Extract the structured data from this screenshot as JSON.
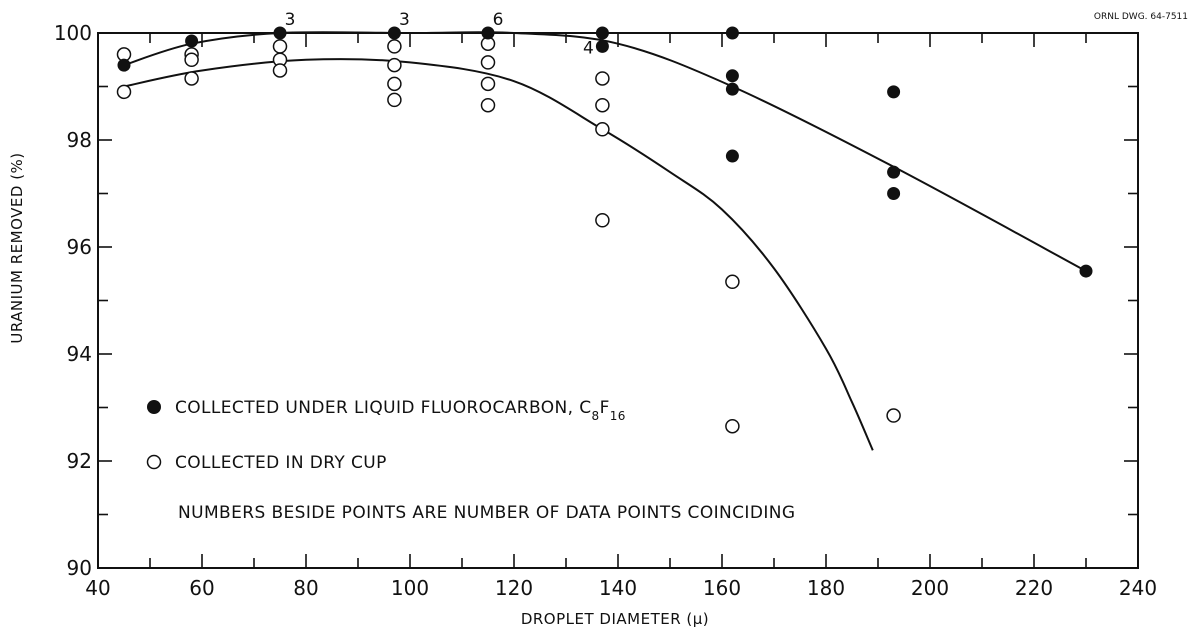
{
  "drawing_id": "ORNL DWG. 64-7511",
  "chart_data": {
    "type": "scatter",
    "xlabel": "DROPLET DIAMETER (μ)",
    "ylabel": "URANIUM REMOVED (%)",
    "xlim": [
      40,
      240
    ],
    "ylim": [
      90,
      100
    ],
    "x_ticks": [
      40,
      60,
      80,
      100,
      120,
      140,
      160,
      180,
      200,
      220,
      240
    ],
    "y_ticks": [
      90,
      92,
      94,
      96,
      98,
      100
    ],
    "x_tick_labels": [
      "40",
      "60",
      "80",
      "100",
      "120",
      "140",
      "160",
      "180",
      "200",
      "220",
      "240"
    ],
    "y_tick_labels": [
      "90",
      "92",
      "94",
      "96",
      "98",
      "100"
    ],
    "grid": false,
    "legend_position": "bottom-left",
    "series": [
      {
        "name": "COLLECTED UNDER LIQUID FLUOROCARBON, C8F16",
        "legend_main": "COLLECTED UNDER LIQUID FLUOROCARBON, C",
        "legend_sub1": "8",
        "legend_mid": "F",
        "legend_sub2": "16",
        "marker": "filled-circle",
        "points": [
          [
            45,
            99.4
          ],
          [
            58,
            99.85
          ],
          [
            75,
            100.0
          ],
          [
            97,
            100.0
          ],
          [
            115,
            100.0
          ],
          [
            137,
            100.0
          ],
          [
            137,
            99.75
          ],
          [
            162,
            100.0
          ],
          [
            162,
            99.2
          ],
          [
            162,
            98.95
          ],
          [
            162,
            97.7
          ],
          [
            193,
            98.9
          ],
          [
            193,
            97.4
          ],
          [
            193,
            97.0
          ],
          [
            230,
            95.55
          ]
        ],
        "curve": [
          [
            45,
            99.4
          ],
          [
            58,
            99.8
          ],
          [
            75,
            100.0
          ],
          [
            100,
            100.0
          ],
          [
            120,
            100.0
          ],
          [
            140,
            99.8
          ],
          [
            162,
            99.0
          ],
          [
            193,
            97.5
          ],
          [
            230,
            95.55
          ]
        ]
      },
      {
        "name": "COLLECTED IN DRY CUP",
        "marker": "open-circle",
        "points": [
          [
            45,
            99.6
          ],
          [
            45,
            98.9
          ],
          [
            58,
            99.6
          ],
          [
            58,
            99.5
          ],
          [
            58,
            99.15
          ],
          [
            75,
            99.75
          ],
          [
            75,
            99.5
          ],
          [
            75,
            99.3
          ],
          [
            97,
            99.75
          ],
          [
            97,
            99.4
          ],
          [
            97,
            99.05
          ],
          [
            97,
            98.75
          ],
          [
            115,
            99.8
          ],
          [
            115,
            99.45
          ],
          [
            115,
            99.05
          ],
          [
            115,
            98.65
          ],
          [
            137,
            99.15
          ],
          [
            137,
            98.65
          ],
          [
            137,
            98.2
          ],
          [
            137,
            96.5
          ],
          [
            162,
            95.35
          ],
          [
            162,
            92.65
          ],
          [
            193,
            92.85
          ]
        ],
        "curve": [
          [
            45,
            99.0
          ],
          [
            60,
            99.3
          ],
          [
            80,
            99.5
          ],
          [
            100,
            99.45
          ],
          [
            120,
            99.1
          ],
          [
            137,
            98.2
          ],
          [
            150,
            97.4
          ],
          [
            160,
            96.7
          ],
          [
            170,
            95.6
          ],
          [
            180,
            94.1
          ],
          [
            185,
            93.1
          ],
          [
            189,
            92.2
          ]
        ]
      }
    ],
    "annotations": [
      {
        "text": "3",
        "x": 75,
        "y": 100.0
      },
      {
        "text": "3",
        "x": 97,
        "y": 100.0
      },
      {
        "text": "6",
        "x": 115,
        "y": 100.0
      },
      {
        "text": "4",
        "x": 137,
        "y": 99.8
      }
    ],
    "note": "NUMBERS BESIDE POINTS ARE NUMBER OF DATA POINTS COINCIDING"
  }
}
